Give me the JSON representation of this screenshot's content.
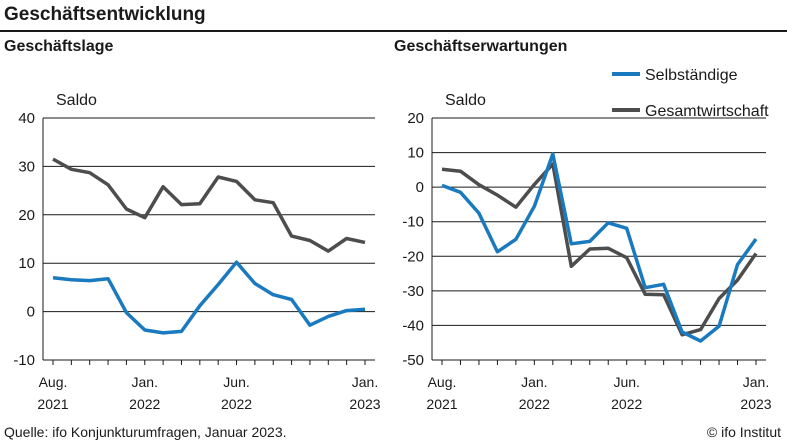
{
  "header": {
    "title": "Geschäftsentwicklung"
  },
  "footer": {
    "source": "Quelle: ifo Konjunkturumfragen, Januar 2023.",
    "credit": "© ifo Institut"
  },
  "legend": [
    {
      "name": "Selbständige",
      "color": "#1a7abf"
    },
    {
      "name": "Gesamtwirtschaft",
      "color": "#4d4d4d"
    }
  ],
  "x_labels": [
    {
      "index": 0,
      "month": "Aug.",
      "year": "2021"
    },
    {
      "index": 5,
      "month": "Jan.",
      "year": "2022"
    },
    {
      "index": 10,
      "month": "Jun.",
      "year": "2022"
    },
    {
      "index": 17,
      "month": "Jan.",
      "year": "2023"
    }
  ],
  "chart_data": [
    {
      "type": "line",
      "title": "Geschäftslage",
      "unit_label": "Saldo",
      "x": [
        "Aug. 2021",
        "Sep. 2021",
        "Okt. 2021",
        "Nov. 2021",
        "Dez. 2021",
        "Jan. 2022",
        "Feb. 2022",
        "Mär. 2022",
        "Apr. 2022",
        "Mai 2022",
        "Jun. 2022",
        "Jul. 2022",
        "Aug. 2022",
        "Sep. 2022",
        "Okt. 2022",
        "Nov. 2022",
        "Dez. 2022",
        "Jan. 2023"
      ],
      "ylim": [
        -10,
        40
      ],
      "yticks": [
        -10,
        0,
        10,
        20,
        30,
        40
      ],
      "grid": true,
      "series": [
        {
          "name": "Selbständige",
          "color": "#1a7abf",
          "values": [
            7,
            6.6,
            6.4,
            6.8,
            -0.2,
            -3.8,
            -4.4,
            -4.1,
            1.2,
            5.6,
            10.2,
            5.8,
            3.5,
            2.5,
            -2.8,
            -1.0,
            0.2,
            0.5
          ]
        },
        {
          "name": "Gesamtwirtschaft",
          "color": "#4d4d4d",
          "values": [
            31.5,
            29.4,
            28.7,
            26.2,
            21.2,
            19.4,
            25.8,
            22.1,
            22.3,
            27.8,
            26.9,
            23.1,
            22.5,
            15.6,
            14.7,
            12.5,
            15.1,
            14.3
          ]
        }
      ]
    },
    {
      "type": "line",
      "title": "Geschäftserwartungen",
      "unit_label": "Saldo",
      "x": [
        "Aug. 2021",
        "Sep. 2021",
        "Okt. 2021",
        "Nov. 2021",
        "Dez. 2021",
        "Jan. 2022",
        "Feb. 2022",
        "Mär. 2022",
        "Apr. 2022",
        "Mai 2022",
        "Jun. 2022",
        "Jul. 2022",
        "Aug. 2022",
        "Sep. 2022",
        "Okt. 2022",
        "Nov. 2022",
        "Dez. 2022",
        "Jan. 2023"
      ],
      "ylim": [
        -50,
        20
      ],
      "yticks": [
        -50,
        -40,
        -30,
        -20,
        -10,
        0,
        10,
        20
      ],
      "grid": true,
      "legend_position": "top-right",
      "series": [
        {
          "name": "Selbständige",
          "color": "#1a7abf",
          "values": [
            0.5,
            -1.5,
            -7.5,
            -18.7,
            -15.1,
            -5.5,
            9.6,
            -16.4,
            -15.7,
            -10.3,
            -11.9,
            -29.1,
            -28.1,
            -41.9,
            -44.5,
            -40.2,
            -22.4,
            -15
          ]
        },
        {
          "name": "Gesamtwirtschaft",
          "color": "#4d4d4d",
          "values": [
            5.2,
            4.6,
            0.7,
            -2.3,
            -5.8,
            0.8,
            6.7,
            -22.9,
            -17.9,
            -17.7,
            -20.4,
            -31.0,
            -31.1,
            -42.7,
            -41.2,
            -32.2,
            -26.9,
            -19.2
          ]
        }
      ]
    }
  ]
}
